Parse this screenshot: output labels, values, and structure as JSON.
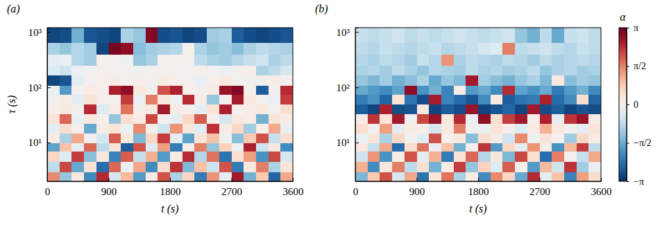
{
  "chart_data": [
    {
      "type": "heatmap",
      "label": "(a)",
      "xlabel": "t (s)",
      "ylabel": "τ (s)",
      "log": "y",
      "xlim": [
        0,
        3600
      ],
      "xticks": [
        0,
        900,
        1800,
        2700,
        3600
      ],
      "ylim": [
        2,
        1200
      ],
      "yticks": [
        {
          "value": 10,
          "label": "10¹"
        },
        {
          "value": 100,
          "label": "10²"
        },
        {
          "value": 1000,
          "label": "10³"
        }
      ],
      "x_edges": [
        0,
        180,
        360,
        540,
        720,
        900,
        1080,
        1260,
        1440,
        1620,
        1800,
        1980,
        2160,
        2340,
        2520,
        2700,
        2880,
        3060,
        3240,
        3420,
        3600
      ],
      "y_edges": [
        2,
        3,
        4.5,
        7,
        10,
        15,
        22,
        33,
        50,
        75,
        110,
        165,
        250,
        400,
        650,
        1200
      ],
      "cells": [
        [
          1.5,
          -1.2,
          0.3,
          -2.0,
          2.4,
          -0.5,
          1.0,
          -1.8,
          0.2,
          2.0,
          -1.0,
          0.6,
          -2.2,
          1.4,
          -0.3,
          2.6,
          -1.5,
          0.8,
          -2.5,
          1.2
        ],
        [
          -0.8,
          2.1,
          -1.6,
          0.4,
          -2.4,
          1.8,
          -0.2,
          1.2,
          -2.0,
          0.5,
          2.3,
          -1.4,
          0.9,
          -0.6,
          2.0,
          -2.2,
          0.3,
          1.6,
          -1.0,
          0.4
        ],
        [
          0.6,
          -0.4,
          2.2,
          -1.3,
          0.3,
          -2.1,
          1.9,
          -0.7,
          1.1,
          -1.8,
          0.2,
          2.4,
          -0.9,
          1.7,
          -2.3,
          0.5,
          1.3,
          -1.9,
          2.1,
          -0.5
        ],
        [
          -1.7,
          0.9,
          -0.3,
          1.8,
          -0.8,
          0.4,
          -2.6,
          2.0,
          -0.4,
          1.3,
          -2.2,
          0.1,
          1.6,
          -1.2,
          0.7,
          -0.2,
          2.5,
          -0.6,
          0.3,
          -2.0
        ],
        [
          0.2,
          -1.0,
          1.2,
          0.0,
          -0.5,
          1.9,
          0.3,
          -1.4,
          0.6,
          2.2,
          -0.3,
          -1.7,
          0.4,
          0.9,
          -0.1,
          -1.3,
          0.8,
          2.0,
          -0.7,
          0.5
        ],
        [
          -0.3,
          0.5,
          0.1,
          -1.6,
          0.2,
          0.4,
          -0.2,
          1.5,
          0.0,
          -0.6,
          1.4,
          0.3,
          -0.4,
          2.3,
          0.2,
          0.6,
          -1.1,
          0.1,
          1.2,
          -0.2
        ],
        [
          0.4,
          1.8,
          -0.2,
          0.3,
          0.1,
          -1.2,
          0.5,
          0.2,
          2.1,
          0.0,
          -0.3,
          0.6,
          1.9,
          0.1,
          -0.5,
          0.3,
          0.2,
          -1.5,
          0.4,
          0.2
        ],
        [
          0.1,
          0.3,
          0.0,
          2.4,
          -0.4,
          0.2,
          1.7,
          0.1,
          0.3,
          2.6,
          0.2,
          0.0,
          -0.3,
          0.4,
          2.5,
          0.1,
          0.2,
          0.3,
          0.0,
          0.5
        ],
        [
          0.0,
          0.2,
          -0.3,
          0.4,
          0.1,
          0.0,
          2.2,
          -0.2,
          1.6,
          0.3,
          -0.1,
          2.4,
          0.2,
          -1.2,
          0.1,
          2.6,
          0.3,
          0.0,
          -0.2,
          2.2
        ],
        [
          -0.2,
          -1.8,
          0.0,
          0.2,
          0.1,
          2.5,
          2.8,
          0.3,
          0.0,
          2.0,
          2.5,
          0.1,
          0.0,
          0.2,
          2.7,
          2.9,
          0.1,
          -2.6,
          0.0,
          2.4
        ],
        [
          -2.9,
          -2.7,
          -0.3,
          0.0,
          0.1,
          0.2,
          0.0,
          0.1,
          0.0,
          0.2,
          0.1,
          0.0,
          -0.2,
          0.1,
          0.3,
          0.0,
          -0.1,
          0.0,
          0.2,
          0.0
        ],
        [
          -0.4,
          -0.6,
          -0.2,
          0.0,
          0.1,
          0.0,
          0.0,
          -0.1,
          0.0,
          0.1,
          0.0,
          0.0,
          0.1,
          0.0,
          -0.2,
          0.0,
          0.1,
          -1.0,
          -0.8,
          -0.5
        ],
        [
          -0.3,
          -0.2,
          -0.9,
          -1.1,
          0.1,
          0.0,
          -0.1,
          -1.2,
          -1.0,
          0.0,
          0.1,
          0.0,
          -0.8,
          -1.0,
          -1.1,
          -0.9,
          -0.7,
          -0.6,
          -1.0,
          -0.8
        ],
        [
          -1.0,
          -1.2,
          -0.9,
          -1.1,
          -2.9,
          3.0,
          2.8,
          -1.3,
          -1.1,
          -1.0,
          -0.9,
          0.1,
          -1.0,
          -1.2,
          -1.1,
          -1.3,
          -1.0,
          -0.8,
          -0.9,
          -1.0
        ],
        [
          -2.9,
          -2.8,
          -1.5,
          -2.7,
          -2.8,
          -2.9,
          -1.0,
          -1.2,
          2.9,
          -2.8,
          -2.7,
          -2.9,
          -2.8,
          -1.1,
          -1.0,
          -2.6,
          -2.8,
          -2.9,
          -2.8,
          -2.7
        ]
      ]
    },
    {
      "type": "heatmap",
      "label": "(b)",
      "xlabel": "t (s)",
      "log": "y",
      "xlim": [
        0,
        3600
      ],
      "xticks": [
        0,
        900,
        1800,
        2700,
        3600
      ],
      "ylim": [
        2,
        1200
      ],
      "yticks": [
        {
          "value": 10,
          "label": "10¹"
        },
        {
          "value": 100,
          "label": "10²"
        },
        {
          "value": 1000,
          "label": "10³"
        }
      ],
      "x_edges": [
        0,
        180,
        360,
        540,
        720,
        900,
        1080,
        1260,
        1440,
        1620,
        1800,
        1980,
        2160,
        2340,
        2520,
        2700,
        2880,
        3060,
        3240,
        3420,
        3600
      ],
      "y_edges": [
        2,
        3,
        4.5,
        7,
        10,
        15,
        22,
        33,
        50,
        75,
        110,
        165,
        250,
        400,
        650,
        1200
      ],
      "cells": [
        [
          -1.4,
          0.8,
          2.0,
          -0.5,
          1.2,
          -2.3,
          0.4,
          1.7,
          -1.0,
          0.2,
          -2.0,
          1.5,
          0.6,
          -1.6,
          2.4,
          -0.3,
          0.9,
          -2.1,
          1.3,
          0.5
        ],
        [
          1.1,
          -2.0,
          0.3,
          1.6,
          -0.8,
          0.5,
          -1.5,
          0.2,
          2.2,
          -1.2,
          0.7,
          -0.4,
          1.9,
          0.1,
          -1.8,
          1.0,
          -0.6,
          2.3,
          -1.1,
          -0.2
        ],
        [
          -0.6,
          1.4,
          -1.9,
          0.2,
          2.0,
          -0.3,
          1.1,
          -2.2,
          0.4,
          1.8,
          -0.9,
          0.3,
          -1.4,
          2.1,
          0.5,
          -2.4,
          1.6,
          0.0,
          -0.7,
          1.2
        ],
        [
          0.3,
          -0.7,
          1.2,
          -2.4,
          0.5,
          1.7,
          -0.2,
          0.9,
          -1.5,
          0.1,
          2.3,
          -1.8,
          0.6,
          -0.3,
          1.4,
          0.2,
          -1.9,
          1.0,
          2.2,
          -0.8
        ],
        [
          -0.2,
          0.4,
          -1.0,
          0.6,
          0.0,
          -0.4,
          2.0,
          0.1,
          0.3,
          -1.3,
          0.5,
          0.2,
          -0.6,
          1.5,
          -0.1,
          0.4,
          0.0,
          -1.1,
          0.6,
          0.2
        ],
        [
          0.5,
          0.0,
          1.3,
          -0.3,
          0.2,
          0.1,
          -0.5,
          0.3,
          1.6,
          0.0,
          -0.2,
          0.4,
          0.1,
          -0.4,
          0.2,
          1.1,
          0.3,
          0.0,
          -0.3,
          0.4
        ],
        [
          0.2,
          2.3,
          0.4,
          2.6,
          -0.1,
          2.1,
          2.7,
          0.3,
          2.4,
          -0.2,
          2.8,
          0.5,
          2.2,
          2.6,
          0.1,
          2.5,
          -0.3,
          2.3,
          2.7,
          0.2
        ],
        [
          -2.6,
          -2.9,
          2.5,
          -2.8,
          -2.7,
          0.3,
          -2.9,
          -2.6,
          -2.8,
          2.7,
          -2.9,
          -2.7,
          -2.5,
          -2.9,
          2.6,
          -2.8,
          -2.6,
          -2.9,
          -2.7,
          -2.8
        ],
        [
          -2.2,
          -1.9,
          -2.5,
          0.4,
          -2.3,
          -2.8,
          2.6,
          -2.1,
          -2.4,
          -2.7,
          -2.0,
          0.3,
          -2.6,
          -2.3,
          -2.2,
          2.5,
          -2.4,
          -2.0,
          0.5,
          -2.5
        ],
        [
          -1.6,
          -1.8,
          -2.0,
          -1.7,
          2.8,
          -1.9,
          -1.5,
          -2.1,
          0.2,
          -1.8,
          -1.6,
          -2.0,
          2.4,
          -1.7,
          -1.9,
          -1.6,
          -2.2,
          -1.8,
          -1.5,
          -2.0
        ],
        [
          -1.2,
          -1.4,
          -1.1,
          -1.5,
          -1.3,
          -1.0,
          -1.6,
          -1.2,
          -1.4,
          2.6,
          -1.1,
          -1.3,
          -1.5,
          -1.2,
          -1.0,
          -1.4,
          0.3,
          -1.3,
          -1.1,
          -1.2
        ],
        [
          -1.0,
          -0.9,
          -1.1,
          -0.8,
          -1.0,
          -1.2,
          -0.9,
          -1.0,
          -1.1,
          -0.8,
          -1.0,
          -0.9,
          -1.1,
          -1.0,
          -0.8,
          -1.2,
          -1.0,
          -0.9,
          -1.1,
          -1.0
        ],
        [
          -0.9,
          -1.0,
          -0.8,
          -0.9,
          -1.1,
          -0.7,
          -0.9,
          1.4,
          -1.0,
          -0.8,
          -0.9,
          -1.0,
          -0.8,
          -0.9,
          -1.1,
          -0.8,
          -1.0,
          -0.9,
          -0.8,
          -0.9
        ],
        [
          -0.8,
          -0.9,
          -0.7,
          -0.8,
          -0.9,
          -0.8,
          -0.7,
          -0.9,
          -0.8,
          -0.7,
          -0.5,
          -0.4,
          1.6,
          -0.8,
          -0.7,
          -0.6,
          -0.8,
          -0.9,
          -0.7,
          -0.8
        ],
        [
          -0.7,
          -0.8,
          -0.7,
          -0.6,
          -0.8,
          -0.7,
          -0.8,
          -0.7,
          -0.6,
          -0.7,
          -0.8,
          -0.7,
          -0.6,
          -1.2,
          -1.5,
          -0.8,
          -1.6,
          -0.7,
          -0.6,
          -0.8
        ]
      ],
      "colorbar": {
        "title": "α",
        "range": [
          -3.1416,
          3.1416
        ],
        "ticks": [
          {
            "value": 3.1416,
            "label": "π"
          },
          {
            "value": 1.5708,
            "label": "π/2"
          },
          0,
          {
            "value": -1.5708,
            "label": "−π/2"
          },
          {
            "value": -3.1416,
            "label": "−π"
          }
        ]
      }
    }
  ]
}
